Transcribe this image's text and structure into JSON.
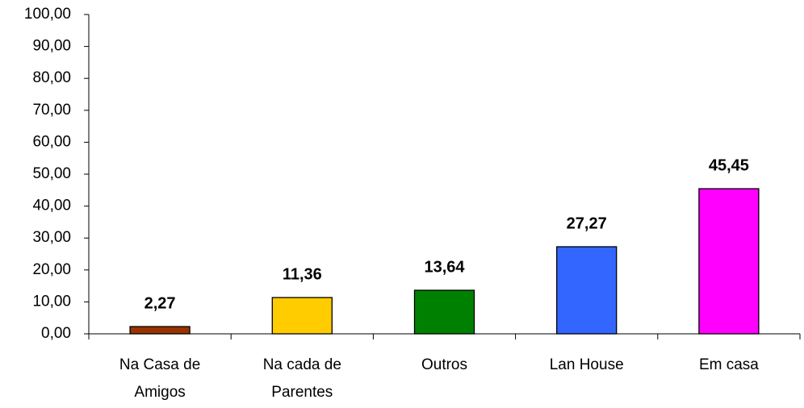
{
  "chart_data": {
    "type": "bar",
    "categories": [
      [
        "Na Casa de",
        "Amigos"
      ],
      [
        "Na cada de",
        "Parentes"
      ],
      [
        "Outros"
      ],
      [
        "Lan House"
      ],
      [
        "Em casa"
      ]
    ],
    "values": [
      2.27,
      11.36,
      13.64,
      27.27,
      45.45
    ],
    "value_labels": [
      "2,27",
      "11,36",
      "13,64",
      "27,27",
      "45,45"
    ],
    "colors": [
      "#993300",
      "#ffcc00",
      "#008000",
      "#3366ff",
      "#ff00ff"
    ],
    "ylim": [
      0,
      100
    ],
    "yticks": [
      {
        "value": 0,
        "label": "0,00"
      },
      {
        "value": 10,
        "label": "10,00"
      },
      {
        "value": 20,
        "label": "20,00"
      },
      {
        "value": 30,
        "label": "30,00"
      },
      {
        "value": 40,
        "label": "40,00"
      },
      {
        "value": 50,
        "label": "50,00"
      },
      {
        "value": 60,
        "label": "60,00"
      },
      {
        "value": 70,
        "label": "70,00"
      },
      {
        "value": 80,
        "label": "80,00"
      },
      {
        "value": 90,
        "label": "90,00"
      },
      {
        "value": 100,
        "label": "100,00"
      }
    ],
    "grid": false
  }
}
